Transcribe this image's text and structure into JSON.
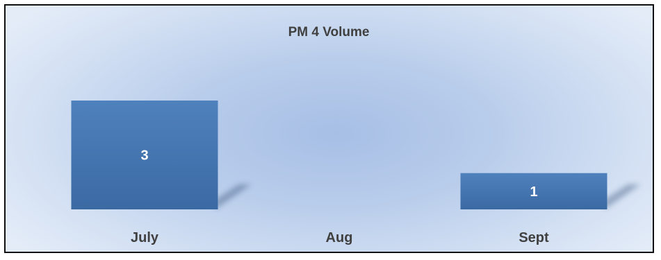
{
  "chart_data": {
    "type": "bar",
    "title": "PM 4 Volume",
    "categories": [
      "July",
      "Aug",
      "Sept"
    ],
    "values": [
      3,
      0,
      1
    ],
    "data_labels": [
      "3",
      "",
      "1"
    ],
    "xlabel": "",
    "ylabel": "",
    "ylim": [
      0,
      3
    ],
    "grid": false,
    "legend": "none",
    "colors": {
      "bar_top": "#4f81bd",
      "bar_bottom": "#3b6aa3",
      "label_text": "#404040",
      "data_label_text": "#ffffff"
    }
  }
}
